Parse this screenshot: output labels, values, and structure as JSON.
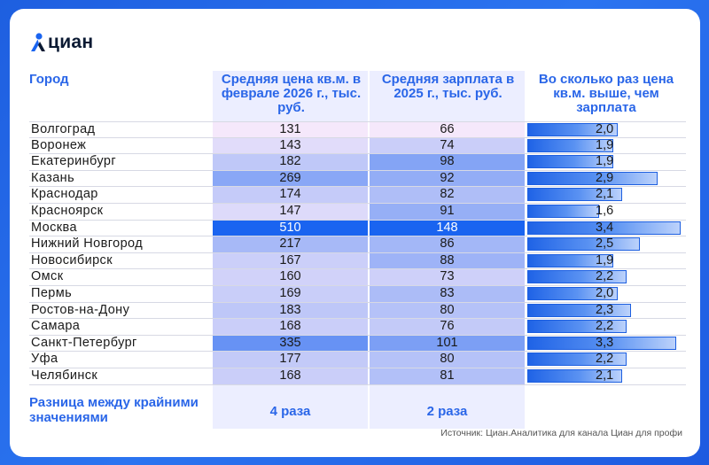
{
  "brand": {
    "name": "циан"
  },
  "headers": {
    "city": "Город",
    "price": "Средняя цена кв.м. в феврале 2026 г., тыс. руб.",
    "salary": "Средняя зарплата в 2025 г., тыс. руб.",
    "ratio": "Во сколько раз цена кв.м. выше, чем зарплата"
  },
  "colors": {
    "accent": "#2a66e8",
    "bar": "#1f63e6",
    "cell_base": "#eceeff",
    "cell_max": "#1a64f0"
  },
  "rows": [
    {
      "city": "Волгоград",
      "price": 131,
      "salary": 66,
      "ratio": 2.0,
      "ratio_text": "2,0"
    },
    {
      "city": "Воронеж",
      "price": 143,
      "salary": 74,
      "ratio": 1.9,
      "ratio_text": "1,9"
    },
    {
      "city": "Екатеринбург",
      "price": 182,
      "salary": 98,
      "ratio": 1.9,
      "ratio_text": "1,9"
    },
    {
      "city": "Казань",
      "price": 269,
      "salary": 92,
      "ratio": 2.9,
      "ratio_text": "2,9"
    },
    {
      "city": "Краснодар",
      "price": 174,
      "salary": 82,
      "ratio": 2.1,
      "ratio_text": "2,1"
    },
    {
      "city": "Красноярск",
      "price": 147,
      "salary": 91,
      "ratio": 1.6,
      "ratio_text": "1,6"
    },
    {
      "city": "Москва",
      "price": 510,
      "salary": 148,
      "ratio": 3.4,
      "ratio_text": "3,4"
    },
    {
      "city": "Нижний Новгород",
      "price": 217,
      "salary": 86,
      "ratio": 2.5,
      "ratio_text": "2,5"
    },
    {
      "city": "Новосибирск",
      "price": 167,
      "salary": 88,
      "ratio": 1.9,
      "ratio_text": "1,9"
    },
    {
      "city": "Омск",
      "price": 160,
      "salary": 73,
      "ratio": 2.2,
      "ratio_text": "2,2"
    },
    {
      "city": "Пермь",
      "price": 169,
      "salary": 83,
      "ratio": 2.0,
      "ratio_text": "2,0"
    },
    {
      "city": "Ростов-на-Дону",
      "price": 183,
      "salary": 80,
      "ratio": 2.3,
      "ratio_text": "2,3"
    },
    {
      "city": "Самара",
      "price": 168,
      "salary": 76,
      "ratio": 2.2,
      "ratio_text": "2,2"
    },
    {
      "city": "Санкт-Петербург",
      "price": 335,
      "salary": 101,
      "ratio": 3.3,
      "ratio_text": "3,3"
    },
    {
      "city": "Уфа",
      "price": 177,
      "salary": 80,
      "ratio": 2.2,
      "ratio_text": "2,2"
    },
    {
      "city": "Челябинск",
      "price": 168,
      "salary": 81,
      "ratio": 2.1,
      "ratio_text": "2,1"
    }
  ],
  "difference": {
    "label": "Разница между крайними значениями",
    "price": "4 раза",
    "salary": "2 раза"
  },
  "source": "Источник: Циан.Аналитика для канала Циан для профи"
}
